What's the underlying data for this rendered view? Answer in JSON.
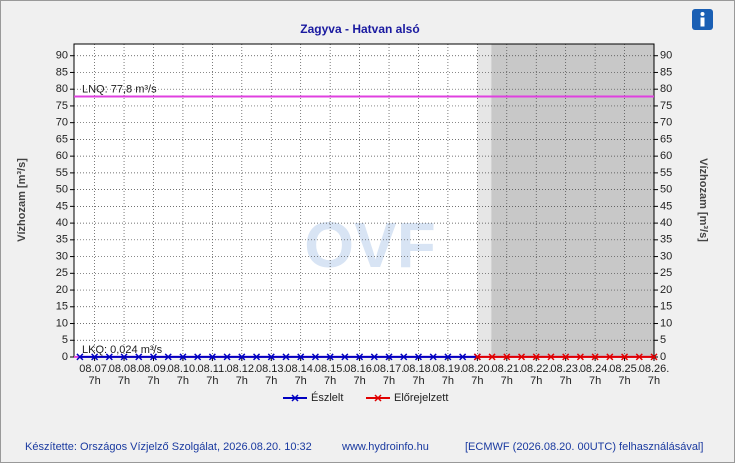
{
  "chart_data": {
    "type": "line",
    "title": "Zagyva - Hatvan alsó",
    "y_label": "Vízhozam [m³/s]",
    "watermark": "OVF",
    "xlim": [
      -0.7,
      19
    ],
    "xticks": [
      {
        "value": 0,
        "label": "08.07."
      },
      {
        "value": 1,
        "label": "08.08."
      },
      {
        "value": 2,
        "label": "08.09."
      },
      {
        "value": 3,
        "label": "08.10."
      },
      {
        "value": 4,
        "label": "08.11."
      },
      {
        "value": 5,
        "label": "08.12."
      },
      {
        "value": 6,
        "label": "08.13."
      },
      {
        "value": 7,
        "label": "08.14."
      },
      {
        "value": 8,
        "label": "08.15."
      },
      {
        "value": 9,
        "label": "08.16."
      },
      {
        "value": 10,
        "label": "08.17."
      },
      {
        "value": 11,
        "label": "08.18."
      },
      {
        "value": 12,
        "label": "08.19."
      },
      {
        "value": 13,
        "label": "08.20."
      },
      {
        "value": 14,
        "label": "08.21."
      },
      {
        "value": 15,
        "label": "08.22."
      },
      {
        "value": 16,
        "label": "08.23."
      },
      {
        "value": 17,
        "label": "08.24."
      },
      {
        "value": 18,
        "label": "08.25."
      },
      {
        "value": 19,
        "label": "08.26."
      }
    ],
    "x_hour_labels": [
      "7h",
      "7h",
      "7h",
      "7h",
      "7h",
      "7h",
      "7h",
      "7h",
      "7h",
      "7h",
      "7h",
      "7h",
      "7h",
      "7h",
      "7h",
      "7h",
      "7h",
      "7h",
      "7h",
      "7h"
    ],
    "ylim": [
      0,
      93.5
    ],
    "yticks": [
      0,
      5,
      10,
      15,
      20,
      25,
      30,
      35,
      40,
      45,
      50,
      55,
      60,
      65,
      70,
      75,
      80,
      85,
      90
    ],
    "grid": true,
    "reference_lines": [
      {
        "value": 77.8,
        "label": "LNQ: 77,8 m³/s",
        "color": "#e040e0"
      },
      {
        "value": 0.024,
        "label": "LKQ: 0,024 m³/s",
        "color": "#e040e0"
      }
    ],
    "series": [
      {
        "name": "Észlelt",
        "color": "#0000c0",
        "x": [
          -0.5,
          0,
          0.5,
          1,
          1.5,
          2,
          2.5,
          3,
          3.5,
          4,
          4.5,
          5,
          5.5,
          6,
          6.5,
          7,
          7.5,
          8,
          8.5,
          9,
          9.5,
          10,
          10.5,
          11,
          11.5,
          12,
          12.5,
          13
        ],
        "values": [
          0.03,
          0.03,
          0.03,
          0.03,
          0.03,
          0.03,
          0.03,
          0.03,
          0.03,
          0.03,
          0.03,
          0.03,
          0.03,
          0.03,
          0.03,
          0.03,
          0.03,
          0.03,
          0.03,
          0.03,
          0.03,
          0.03,
          0.03,
          0.03,
          0.03,
          0.03,
          0.03,
          0.03
        ]
      },
      {
        "name": "Előrejelzett",
        "color": "#e00000",
        "x": [
          13,
          13.5,
          14,
          14.5,
          15,
          15.5,
          16,
          16.5,
          17,
          17.5,
          18,
          18.5,
          19
        ],
        "values": [
          0.03,
          0.03,
          0.03,
          0.03,
          0.03,
          0.03,
          0.03,
          0.03,
          0.03,
          0.03,
          0.03,
          0.03,
          0.03
        ]
      }
    ],
    "footer": [
      "Készítette: Országos Vízjelző Szolgálat, 2026.08.20. 10:32",
      "www.hydroinfo.hu",
      "[ECMWF (2026.08.20. 00UTC) felhasználásával]"
    ]
  }
}
